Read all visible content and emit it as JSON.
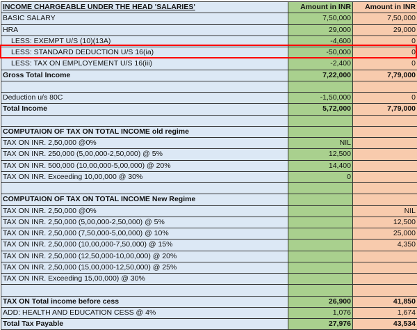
{
  "header": {
    "label": "INCOME CHARGEABLE UNDER THE HEAD 'SALARIES'",
    "old": "Amount in INR",
    "new": "Amount in INR"
  },
  "rows": [
    {
      "label": "BASIC SALARY",
      "old": "7,50,000",
      "new": "7,50,000"
    },
    {
      "label": "HRA",
      "old": "29,000",
      "new": "29,000"
    },
    {
      "label": "LESS: EXEMPT U/S (10)(13A)",
      "old": "-4,600",
      "new": "0",
      "indent": true
    },
    {
      "label": "LESS: STANDARD DEDUCTION U/S 16(ia)",
      "old": "-50,000",
      "new": "0",
      "indent": true,
      "highlighted": true
    },
    {
      "label": "LESS: TAX ON EMPLOYEMENT U/S 16(iii)",
      "old": "-2,400",
      "new": "0",
      "indent": true
    },
    {
      "label": "Gross Total Income",
      "old": "7,22,000",
      "new": "7,79,000",
      "bold": true
    },
    {
      "label": "",
      "old": "",
      "new": ""
    },
    {
      "label": "Deduction u/s 80C",
      "old": "-1,50,000",
      "new": "0"
    },
    {
      "label": "Total Income",
      "old": "5,72,000",
      "new": "7,79,000",
      "bold": true
    },
    {
      "label": "",
      "old": "",
      "new": ""
    },
    {
      "label": "COMPUTAION OF TAX ON TOTAL INCOME old regime",
      "old": "",
      "new": "",
      "bold": true
    },
    {
      "label": "TAX ON INR. 2,50,000 @0%",
      "old": "NIL",
      "new": ""
    },
    {
      "label": "TAX ON INR. 250,000 (5,00,000-2,50,000) @ 5%",
      "old": "12,500",
      "new": ""
    },
    {
      "label": "TAX ON INR. 500,000 (10,00,000-5,00,000) @ 20%",
      "old": "14,400",
      "new": ""
    },
    {
      "label": "TAX ON INR. Exceeding 10,00,000 @ 30%",
      "old": "0",
      "new": ""
    },
    {
      "label": "",
      "old": "",
      "new": ""
    },
    {
      "label": "COMPUTAION OF TAX ON TOTAL INCOME New Regime",
      "old": "",
      "new": "",
      "bold": true
    },
    {
      "label": "TAX ON INR. 2,50,000 @0%",
      "old": "",
      "new": "NIL"
    },
    {
      "label": "TAX ON INR. 2,50,000 (5,00,000-2,50,000) @ 5%",
      "old": "",
      "new": "12,500"
    },
    {
      "label": "TAX ON INR. 2,50,000 (7,50,000-5,00,000) @ 10%",
      "old": "",
      "new": "25,000"
    },
    {
      "label": "TAX ON INR. 2,50,000 (10,00,000-7,50,000) @ 15%",
      "old": "",
      "new": "4,350"
    },
    {
      "label": "TAX ON INR. 2,50,000 (12,50,000-10,00,000) @ 20%",
      "old": "",
      "new": ""
    },
    {
      "label": "TAX ON INR. 2,50,000 (15,00,000-12,50,000) @ 25%",
      "old": "",
      "new": ""
    },
    {
      "label": "TAX ON INR. Exceeding 15,00,000) @ 30%",
      "old": "",
      "new": ""
    },
    {
      "label": "",
      "old": "",
      "new": ""
    },
    {
      "label": "TAX ON Total income before cess",
      "old": "26,900",
      "new": "41,850",
      "bold": true
    },
    {
      "label": "ADD: HEALTH AND EDUCATION CESS @ 4%",
      "old": "1,076",
      "new": "1,674"
    },
    {
      "label": "Total Tax Payable",
      "old": "27,976",
      "new": "43,534",
      "bold": true
    }
  ],
  "colors": {
    "label_bg": "#dce8f5",
    "old_regime_bg": "#a9d08e",
    "new_regime_bg": "#f8cbad",
    "highlight": "#ff0000"
  }
}
